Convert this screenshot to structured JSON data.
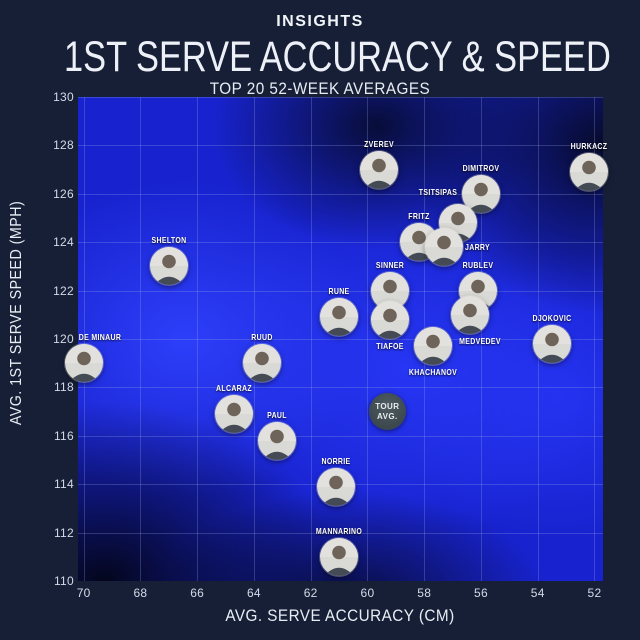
{
  "page": {
    "eyebrow": "INSIGHTS",
    "title": "1ST SERVE ACCURACY & SPEED",
    "subtitle": "TOP 20 52-WEEK AVERAGES"
  },
  "colors": {
    "page_background": "#161f36",
    "plot_blue": "#1823cf",
    "plot_blue_bright": "#3042ff",
    "plot_dark_blob": "#060a26",
    "gridline": "rgba(165,180,235,0.25)",
    "text": "#ffffff",
    "tour_avg_fill": "#414e54"
  },
  "chart_data": {
    "type": "scatter",
    "title": "1ST SERVE ACCURACY & SPEED",
    "subtitle": "TOP 20 52-WEEK AVERAGES",
    "xlabel": "AVG. SERVE ACCURACY (CM)",
    "ylabel": "AVG. 1ST SERVE SPEED (MPH)",
    "x_axis_reversed": true,
    "xlim": [
      70.2,
      51.7
    ],
    "ylim": [
      110,
      130
    ],
    "x_ticks": [
      70,
      68,
      66,
      64,
      62,
      60,
      58,
      56,
      54,
      52
    ],
    "y_ticks": [
      130,
      128,
      126,
      124,
      122,
      120,
      118,
      116,
      114,
      112,
      110
    ],
    "grid": true,
    "marker": "player-photo-bubble",
    "points": [
      {
        "name": "ZVEREV",
        "accuracy_cm": 59.6,
        "speed_mph": 127.0,
        "label_pos": "above"
      },
      {
        "name": "HURKACZ",
        "accuracy_cm": 52.2,
        "speed_mph": 126.9,
        "label_pos": "above"
      },
      {
        "name": "DIMITROV",
        "accuracy_cm": 56.0,
        "speed_mph": 126.0,
        "label_pos": "above"
      },
      {
        "name": "TSITSIPAS",
        "accuracy_cm": 56.8,
        "speed_mph": 124.8,
        "label_pos": "above",
        "label_dx": -20,
        "label_dy": -5
      },
      {
        "name": "FRITZ",
        "accuracy_cm": 58.2,
        "speed_mph": 124.0,
        "label_pos": "above"
      },
      {
        "name": "JARRY",
        "accuracy_cm": 57.3,
        "speed_mph": 123.8,
        "label_pos": "right"
      },
      {
        "name": "SHELTON",
        "accuracy_cm": 67.0,
        "speed_mph": 123.0,
        "label_pos": "above"
      },
      {
        "name": "SINNER",
        "accuracy_cm": 59.2,
        "speed_mph": 122.0,
        "label_pos": "above"
      },
      {
        "name": "RUBLEV",
        "accuracy_cm": 56.1,
        "speed_mph": 122.0,
        "label_pos": "above"
      },
      {
        "name": "MEDVEDEV",
        "accuracy_cm": 56.4,
        "speed_mph": 121.0,
        "label_pos": "below",
        "label_dx": 10
      },
      {
        "name": "RUNE",
        "accuracy_cm": 61.0,
        "speed_mph": 120.9,
        "label_pos": "above"
      },
      {
        "name": "TIAFOE",
        "accuracy_cm": 59.2,
        "speed_mph": 120.8,
        "label_pos": "below"
      },
      {
        "name": "DJOKOVIC",
        "accuracy_cm": 53.5,
        "speed_mph": 119.8,
        "label_pos": "above"
      },
      {
        "name": "KHACHANOV",
        "accuracy_cm": 57.7,
        "speed_mph": 119.7,
        "label_pos": "below"
      },
      {
        "name": "DE MINAUR",
        "accuracy_cm": 70.0,
        "speed_mph": 119.0,
        "label_pos": "above",
        "label_dx": 16
      },
      {
        "name": "RUUD",
        "accuracy_cm": 63.7,
        "speed_mph": 119.0,
        "label_pos": "above"
      },
      {
        "name": "ALCARAZ",
        "accuracy_cm": 64.7,
        "speed_mph": 116.9,
        "label_pos": "above"
      },
      {
        "name": "PAUL",
        "accuracy_cm": 63.2,
        "speed_mph": 115.8,
        "label_pos": "above"
      },
      {
        "name": "NORRIE",
        "accuracy_cm": 61.1,
        "speed_mph": 113.9,
        "label_pos": "above"
      },
      {
        "name": "MANNARINO",
        "accuracy_cm": 61.0,
        "speed_mph": 111.0,
        "label_pos": "above"
      }
    ],
    "tour_avg": {
      "label_line1": "TOUR",
      "label_line2": "AVG.",
      "accuracy_cm": 59.3,
      "speed_mph": 117.0
    }
  }
}
